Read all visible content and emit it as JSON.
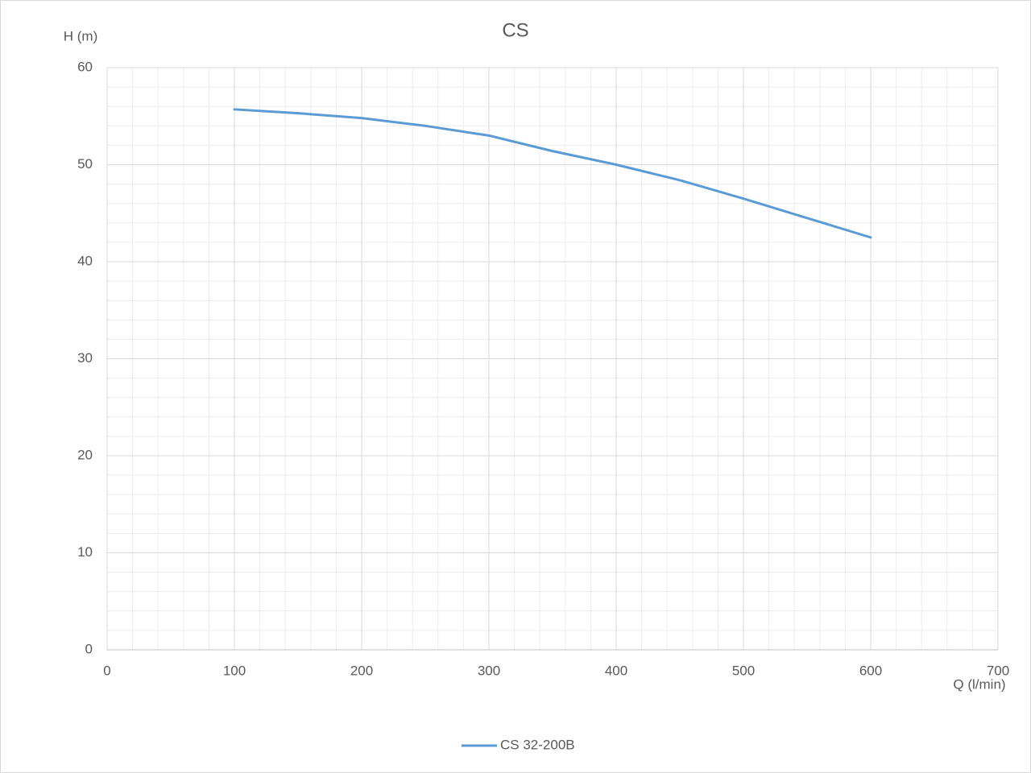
{
  "chart_data": {
    "type": "line",
    "title": "CS",
    "y_label": "H (m)",
    "x_label": "Q (l/min)",
    "x": [
      100,
      150,
      200,
      250,
      300,
      350,
      400,
      450,
      500,
      550,
      600
    ],
    "series": [
      {
        "name": "CS 32-200B",
        "color": "#5b9bd5",
        "values": [
          55.7,
          55.3,
          54.8,
          54.0,
          53.0,
          51.4,
          50.0,
          48.4,
          46.5,
          44.5,
          42.5
        ]
      }
    ],
    "xlim": [
      0,
      700
    ],
    "xticks": [
      0,
      100,
      200,
      300,
      400,
      500,
      600,
      700
    ],
    "ylim": [
      0,
      60
    ],
    "yticks": [
      0,
      10,
      20,
      30,
      40,
      50,
      60
    ],
    "grid": true,
    "legend": "bottom"
  }
}
